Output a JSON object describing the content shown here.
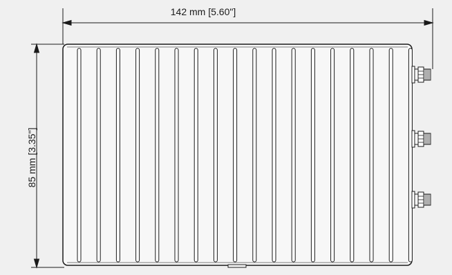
{
  "drawing": {
    "width_dimension": "142 mm [5.60\"]",
    "height_dimension": "85 mm [3.35\"]",
    "fin_count": 18,
    "connector_count": 3,
    "colors": {
      "background": "#f0f0f0",
      "line": "#1a1a1a",
      "body_fill": "#f7f7f7"
    },
    "icons": [
      "sma-connector-icon"
    ]
  }
}
